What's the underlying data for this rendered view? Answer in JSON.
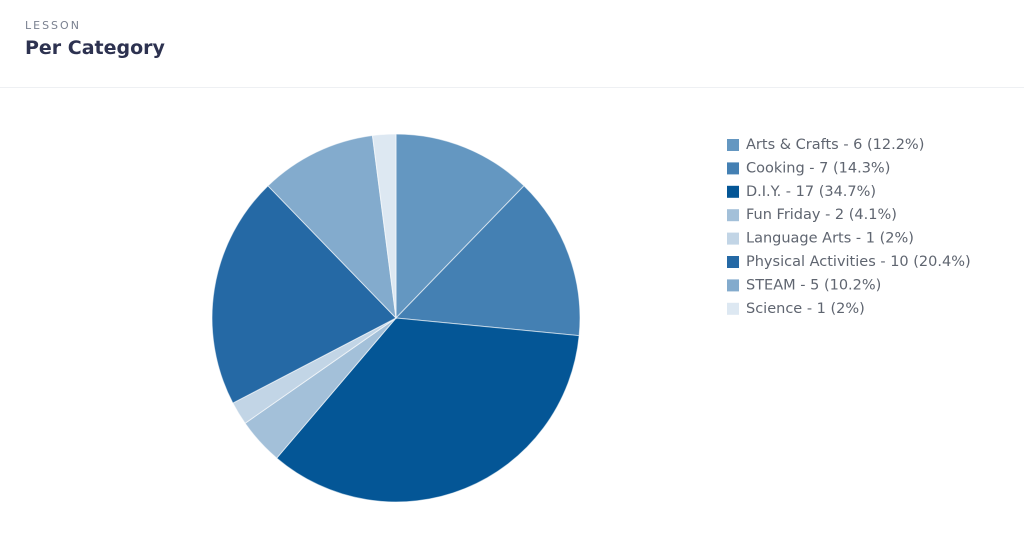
{
  "header": {
    "eyebrow": "LESSON",
    "title": "Per Category"
  },
  "chart_data": {
    "type": "pie",
    "categories": [
      "Arts & Crafts - 6 (12.2%)",
      "Cooking - 7 (14.3%)",
      "D.I.Y. - 17 (34.7%)",
      "Fun Friday - 2 (4.1%)",
      "Language Arts - 1 (2%)",
      "Physical Activities - 10 (20.4%)",
      "STEAM - 5 (10.2%)",
      "Science - 1 (2%)"
    ],
    "values": [
      6,
      7,
      17,
      2,
      1,
      10,
      5,
      1
    ],
    "colors": [
      "#6497c1",
      "#4480b3",
      "#045696",
      "#a3c0d9",
      "#c2d5e6",
      "#2569a5",
      "#83abcd",
      "#dde8f2"
    ],
    "legend": "right"
  }
}
